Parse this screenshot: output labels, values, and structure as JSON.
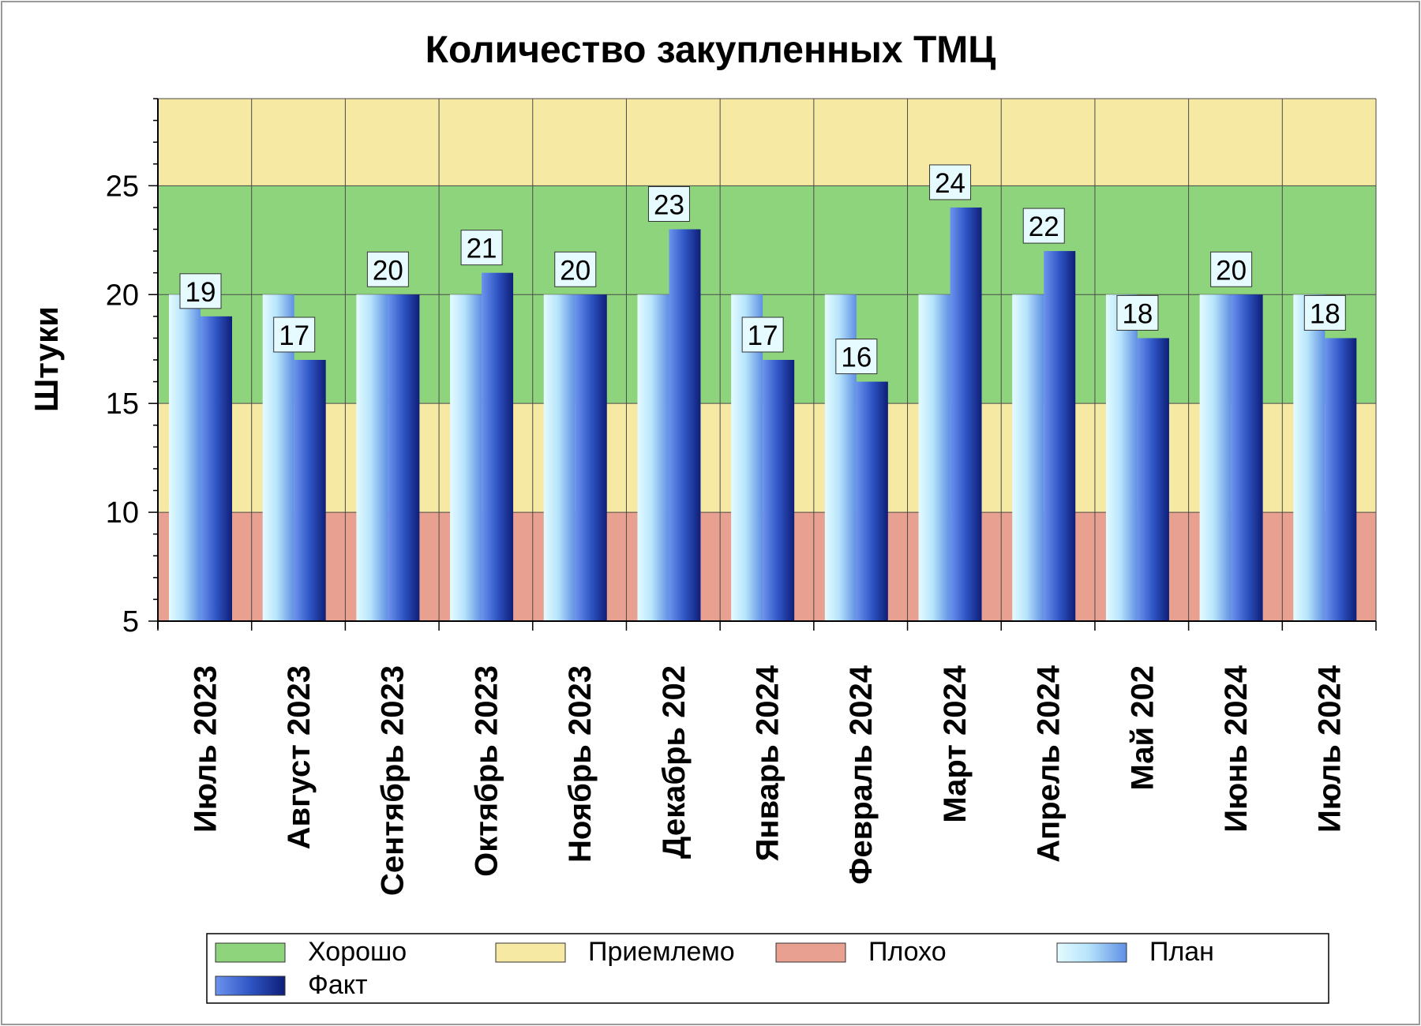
{
  "chart_data": {
    "type": "bar",
    "title": "Количество закупленных ТМЦ",
    "xlabel": "",
    "ylabel": "Штуки",
    "ylim": [
      5,
      29
    ],
    "yticks": [
      5,
      10,
      15,
      20,
      25
    ],
    "categories": [
      "Июль 2023",
      "Август 2023",
      "Сентябрь 2023",
      "Октябрь 2023",
      "Ноябрь 2023",
      "Декабрь 202",
      "Январь 2024",
      "Февраль 2024",
      "Март 2024",
      "Апрель 2024",
      "Май 202",
      "Июнь 2024",
      "Июль 2024"
    ],
    "series": [
      {
        "name": "План",
        "values": [
          20,
          20,
          20,
          20,
          20,
          20,
          20,
          20,
          20,
          20,
          20,
          20,
          20
        ],
        "color": "#8ab8f0"
      },
      {
        "name": "Факт",
        "values": [
          19,
          17,
          20,
          21,
          20,
          23,
          17,
          16,
          24,
          22,
          18,
          20,
          18
        ],
        "color": "#1f3fa8",
        "data_labels": true
      }
    ],
    "bands": [
      {
        "name": "Плохо",
        "from": 5,
        "to": 10,
        "color": "#e8a090"
      },
      {
        "name": "Приемлемо",
        "from": 10,
        "to": 15,
        "color": "#f6e9a4"
      },
      {
        "name": "Хорошо",
        "from": 15,
        "to": 25,
        "color": "#8ed47c"
      },
      {
        "name": "Приемлемо",
        "from": 25,
        "to": 29,
        "color": "#f6e9a4"
      }
    ],
    "legend": {
      "position": "bottom",
      "items": [
        {
          "label": "Хорошо",
          "color": "#8ed47c"
        },
        {
          "label": "Приемлемо",
          "color": "#f6e9a4"
        },
        {
          "label": "Плохо",
          "color": "#e8a090"
        },
        {
          "label": "План",
          "color": "#8ab8f0"
        },
        {
          "label": "Факт",
          "color": "#1f3fa8"
        }
      ]
    },
    "grid": true
  }
}
